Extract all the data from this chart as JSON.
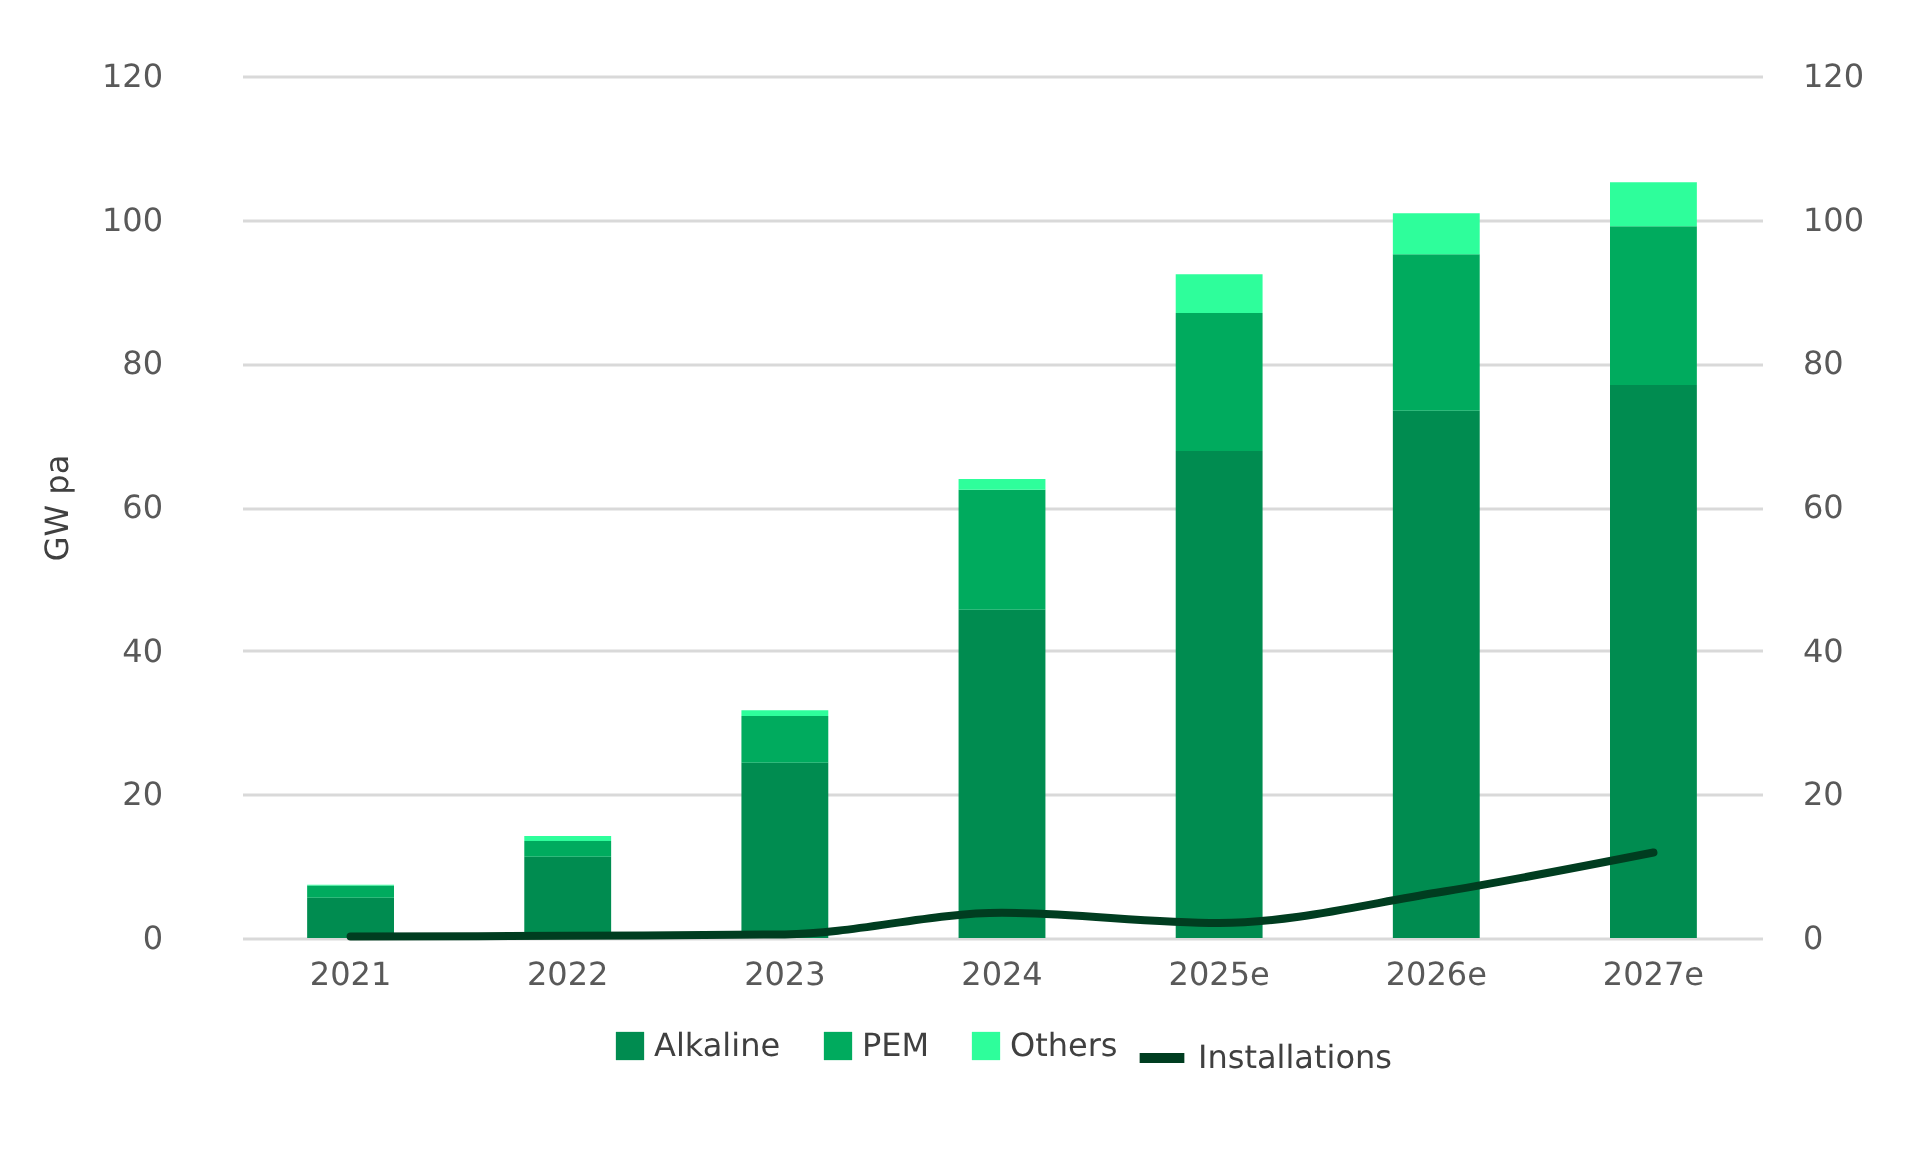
{
  "chart_data": {
    "type": "bar",
    "stacked": true,
    "ylabel": "GW pa",
    "categories": [
      "2021",
      "2022",
      "2023",
      "2024",
      "2025e",
      "2026e",
      "2027e"
    ],
    "series": [
      {
        "name": "Alkaline",
        "color": "#008c50",
        "values": [
          5.6,
          11.3,
          24.4,
          45.7,
          67.8,
          73.4,
          77.0
        ]
      },
      {
        "name": "PEM",
        "color": "#00ab5e",
        "values": [
          1.7,
          2.2,
          6.5,
          16.7,
          19.2,
          21.8,
          22.1
        ]
      },
      {
        "name": "Others",
        "color": "#2efe9b",
        "values": [
          0.1,
          0.7,
          0.8,
          1.5,
          5.4,
          5.7,
          6.1
        ]
      },
      {
        "name": "Installations",
        "type": "line",
        "axis": "y2",
        "color": "#003d20",
        "values": [
          0.2,
          0.3,
          0.5,
          3.5,
          2.1,
          6.3,
          11.9
        ]
      }
    ],
    "ylim": [
      0,
      120
    ],
    "yticks": [
      0,
      20,
      40,
      60,
      80,
      100,
      120
    ],
    "y2lim": [
      0,
      120
    ],
    "y2ticks": [
      0,
      20,
      40,
      60,
      80,
      100,
      120
    ],
    "grid": "y",
    "legend": "bottom"
  }
}
